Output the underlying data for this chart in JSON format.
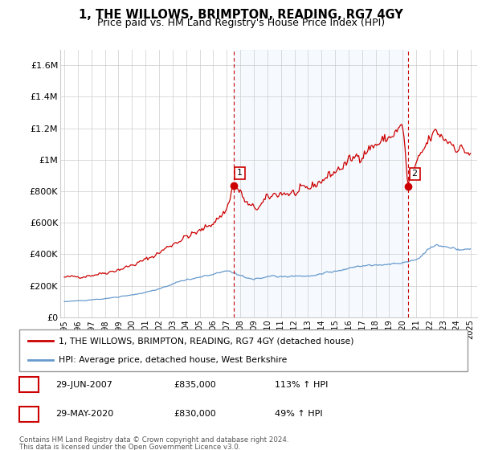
{
  "title": "1, THE WILLOWS, BRIMPTON, READING, RG7 4GY",
  "subtitle": "Price paid vs. HM Land Registry's House Price Index (HPI)",
  "legend_line1": "1, THE WILLOWS, BRIMPTON, READING, RG7 4GY (detached house)",
  "legend_line2": "HPI: Average price, detached house, West Berkshire",
  "footer1": "Contains HM Land Registry data © Crown copyright and database right 2024.",
  "footer2": "This data is licensed under the Open Government Licence v3.0.",
  "sale1_date": "29-JUN-2007",
  "sale1_price": "£835,000",
  "sale1_hpi": "113% ↑ HPI",
  "sale2_date": "29-MAY-2020",
  "sale2_price": "£830,000",
  "sale2_hpi": "49% ↑ HPI",
  "red_color": "#cc0000",
  "blue_color": "#6699cc",
  "shade_color": "#ddeeff",
  "background_color": "#ffffff",
  "grid_color": "#cccccc",
  "ylim": [
    0,
    1700000
  ],
  "yticks": [
    0,
    200000,
    400000,
    600000,
    800000,
    1000000,
    1200000,
    1400000,
    1600000
  ],
  "ytick_labels": [
    "£0",
    "£200K",
    "£400K",
    "£600K",
    "£800K",
    "£1M",
    "£1.2M",
    "£1.4M",
    "£1.6M"
  ],
  "sale1_x": 2007.5,
  "sale1_y": 835000,
  "sale2_x": 2020.42,
  "sale2_y": 830000,
  "xmin": 1994.7,
  "xmax": 2025.5,
  "xtick_years": [
    1995,
    1996,
    1997,
    1998,
    1999,
    2000,
    2001,
    2002,
    2003,
    2004,
    2005,
    2006,
    2007,
    2008,
    2009,
    2010,
    2011,
    2012,
    2013,
    2014,
    2015,
    2016,
    2017,
    2018,
    2019,
    2020,
    2021,
    2022,
    2023,
    2024,
    2025
  ]
}
